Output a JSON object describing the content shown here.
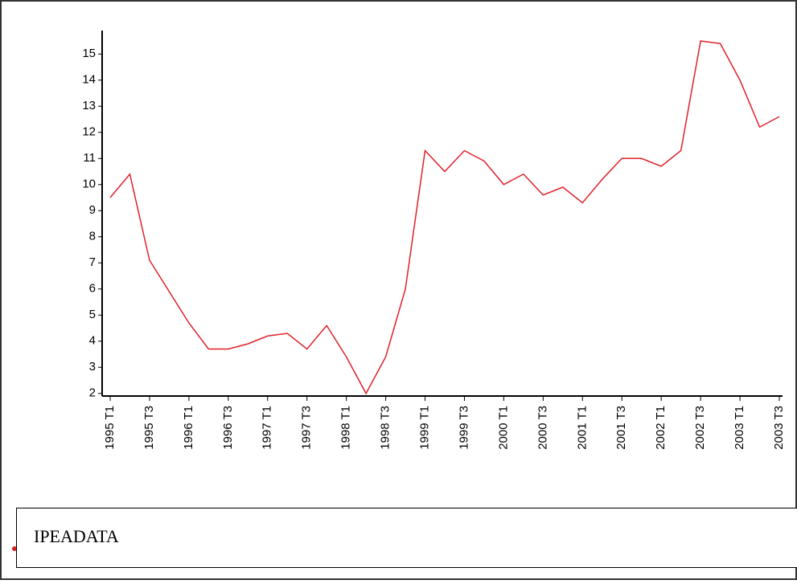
{
  "chart_data": {
    "type": "line",
    "source": "IPEADATA",
    "color": "#e0202a",
    "categories": [
      "1995 T1",
      null,
      "1995 T3",
      null,
      "1996 T1",
      null,
      "1996 T3",
      null,
      "1997 T1",
      null,
      "1997 T3",
      null,
      "1998 T1",
      null,
      "1998 T3",
      null,
      "1999 T1",
      null,
      "1999 T3",
      null,
      "2000 T1",
      null,
      "2000 T3",
      null,
      "2001 T1",
      null,
      "2001 T3",
      null,
      "2002 T1",
      null,
      "2002 T3",
      null,
      "2003 T1",
      null,
      "2003 T3"
    ],
    "values": [
      9.5,
      10.4,
      7.1,
      5.9,
      4.7,
      3.7,
      3.7,
      3.9,
      4.2,
      4.3,
      3.7,
      4.6,
      3.4,
      2.0,
      3.4,
      6.0,
      11.3,
      10.5,
      11.3,
      10.9,
      10.0,
      10.4,
      9.6,
      9.9,
      9.3,
      10.2,
      11.0,
      11.0,
      10.7,
      11.3,
      15.5,
      15.4,
      14.0,
      12.2,
      12.6
    ],
    "ylim": [
      1.9,
      15.9
    ],
    "yticks": [
      2,
      3,
      4,
      5,
      6,
      7,
      8,
      9,
      10,
      11,
      12,
      13,
      14,
      15
    ]
  }
}
